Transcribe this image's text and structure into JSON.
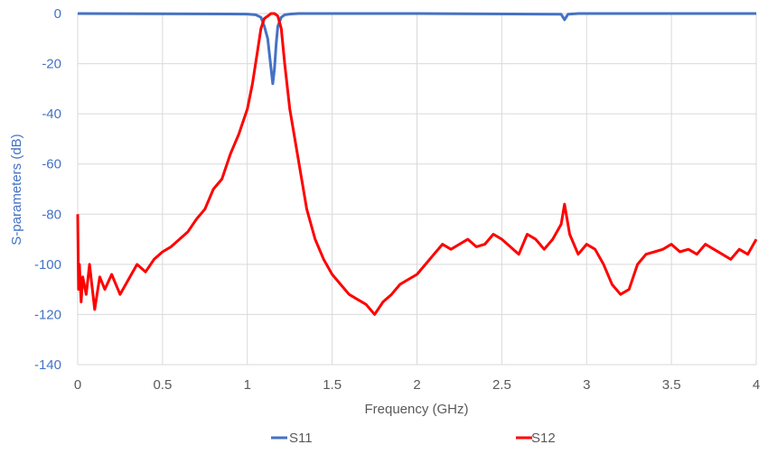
{
  "chart_data": {
    "type": "line",
    "title": "",
    "xlabel": "Frequency (GHz)",
    "ylabel": "S-parameters (dB)",
    "xlim": [
      0,
      4
    ],
    "ylim": [
      -140,
      0
    ],
    "x_ticks": [
      "0",
      "0.5",
      "1",
      "1.5",
      "2",
      "2.5",
      "3",
      "3.5",
      "4"
    ],
    "y_ticks": [
      "0",
      "-20",
      "-40",
      "-60",
      "-80",
      "-100",
      "-120",
      "-140"
    ],
    "grid": true,
    "legend_position": "bottom",
    "series": [
      {
        "name": "S11",
        "color": "#4472c4",
        "x": [
          0,
          1.0,
          1.05,
          1.08,
          1.1,
          1.12,
          1.14,
          1.15,
          1.16,
          1.17,
          1.18,
          1.2,
          1.22,
          1.25,
          1.3,
          2.0,
          2.85,
          2.87,
          2.89,
          2.95,
          4.0
        ],
        "y": [
          0,
          -0.2,
          -0.5,
          -1.5,
          -5,
          -10,
          -22,
          -28,
          -22,
          -12,
          -5,
          -1.5,
          -0.5,
          -0.2,
          0,
          0,
          -0.3,
          -2.5,
          -0.3,
          0,
          0
        ]
      },
      {
        "name": "S12",
        "color": "#ff0000",
        "x": [
          0,
          0.005,
          0.01,
          0.02,
          0.03,
          0.05,
          0.07,
          0.1,
          0.13,
          0.16,
          0.2,
          0.25,
          0.3,
          0.35,
          0.4,
          0.45,
          0.5,
          0.55,
          0.6,
          0.65,
          0.7,
          0.75,
          0.8,
          0.85,
          0.9,
          0.95,
          1.0,
          1.03,
          1.06,
          1.08,
          1.1,
          1.12,
          1.14,
          1.16,
          1.18,
          1.2,
          1.22,
          1.25,
          1.3,
          1.35,
          1.4,
          1.45,
          1.5,
          1.55,
          1.6,
          1.65,
          1.7,
          1.75,
          1.8,
          1.85,
          1.9,
          1.95,
          2.0,
          2.05,
          2.1,
          2.15,
          2.2,
          2.25,
          2.3,
          2.35,
          2.4,
          2.45,
          2.5,
          2.55,
          2.6,
          2.65,
          2.7,
          2.75,
          2.8,
          2.85,
          2.87,
          2.9,
          2.95,
          3.0,
          3.05,
          3.1,
          3.15,
          3.2,
          3.25,
          3.3,
          3.35,
          3.4,
          3.45,
          3.5,
          3.55,
          3.6,
          3.65,
          3.7,
          3.75,
          3.8,
          3.85,
          3.9,
          3.95,
          4.0
        ],
        "y": [
          -80,
          -110,
          -100,
          -115,
          -105,
          -112,
          -100,
          -118,
          -105,
          -110,
          -104,
          -112,
          -106,
          -100,
          -103,
          -98,
          -95,
          -93,
          -90,
          -87,
          -82,
          -78,
          -70,
          -66,
          -56,
          -48,
          -38,
          -28,
          -15,
          -6,
          -2,
          -1,
          0,
          0,
          -1,
          -6,
          -20,
          -38,
          -58,
          -78,
          -90,
          -98,
          -104,
          -108,
          -112,
          -114,
          -116,
          -120,
          -115,
          -112,
          -108,
          -106,
          -104,
          -100,
          -96,
          -92,
          -94,
          -92,
          -90,
          -93,
          -92,
          -88,
          -90,
          -93,
          -96,
          -88,
          -90,
          -94,
          -90,
          -84,
          -76,
          -88,
          -96,
          -92,
          -94,
          -100,
          -108,
          -112,
          -110,
          -100,
          -96,
          -95,
          -94,
          -92,
          -95,
          -94,
          -96,
          -92,
          -94,
          -96,
          -98,
          -94,
          -96,
          -90
        ]
      }
    ]
  }
}
